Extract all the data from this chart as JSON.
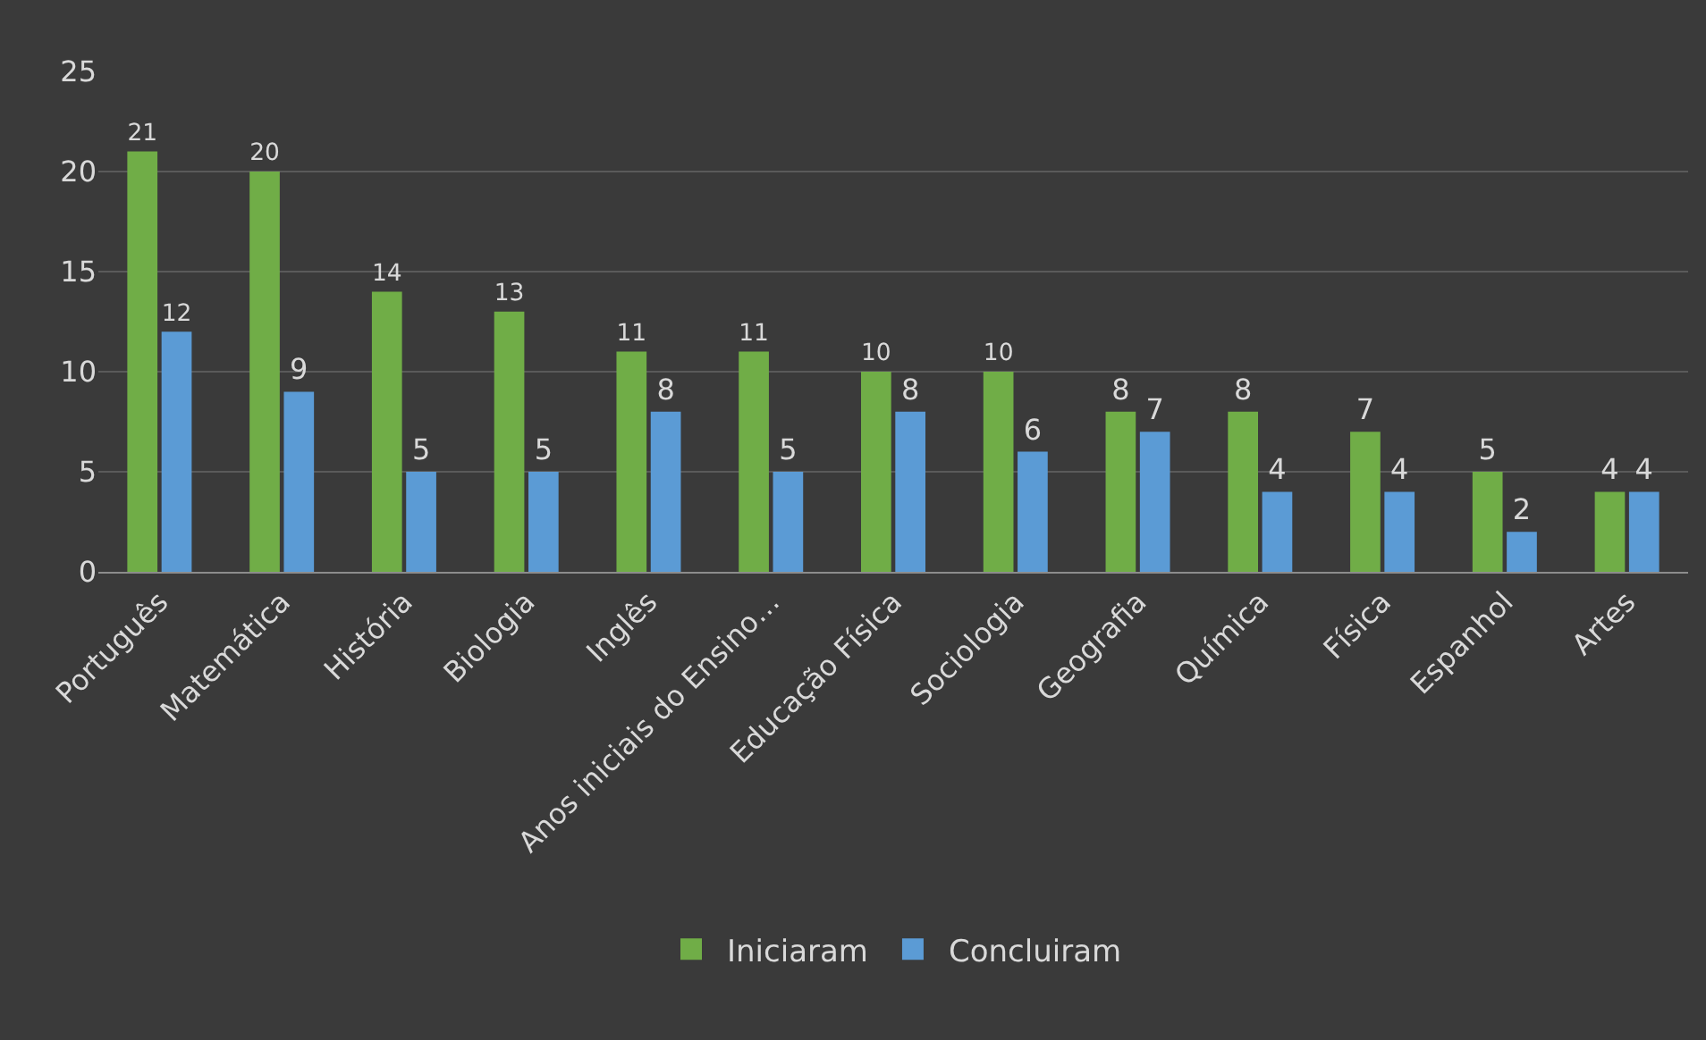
{
  "chart_data": {
    "type": "bar",
    "categories": [
      "Português",
      "Matemática",
      "História",
      "Biologia",
      "Inglês",
      "Anos iniciais do Ensino…",
      "Educação Física",
      "Sociologia",
      "Geografia",
      "Química",
      "Física",
      "Espanhol",
      "Artes"
    ],
    "series": [
      {
        "name": "Iniciaram",
        "color": "#70ad47",
        "values": [
          21,
          20,
          14,
          13,
          11,
          11,
          10,
          10,
          8,
          8,
          7,
          5,
          4
        ]
      },
      {
        "name": "Concluiram",
        "color": "#5b9bd5",
        "values": [
          12,
          9,
          5,
          5,
          8,
          5,
          8,
          6,
          7,
          4,
          4,
          2,
          4
        ]
      }
    ],
    "ylim": [
      0,
      25
    ],
    "yticks": [
      0,
      5,
      10,
      15,
      20,
      25
    ],
    "grid": "y",
    "legend": "bottom",
    "data_labels": true
  }
}
